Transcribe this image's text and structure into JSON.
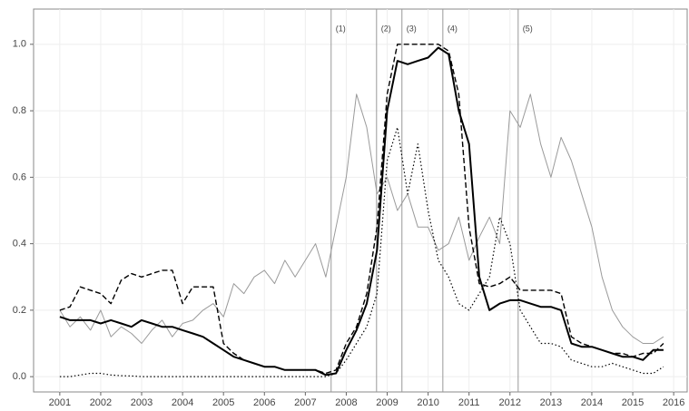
{
  "chart_data": {
    "type": "line",
    "x": [
      2001,
      2001.25,
      2001.5,
      2001.75,
      2002,
      2002.25,
      2002.5,
      2002.75,
      2003,
      2003.25,
      2003.5,
      2003.75,
      2004,
      2004.25,
      2004.5,
      2004.75,
      2005,
      2005.25,
      2005.5,
      2005.75,
      2006,
      2006.25,
      2006.5,
      2006.75,
      2007,
      2007.25,
      2007.5,
      2007.75,
      2008,
      2008.25,
      2008.5,
      2008.75,
      2009,
      2009.25,
      2009.5,
      2009.75,
      2010,
      2010.25,
      2010.5,
      2010.75,
      2011,
      2011.25,
      2011.5,
      2011.75,
      2012,
      2012.25,
      2012.5,
      2012.75,
      2013,
      2013.25,
      2013.5,
      2013.75,
      2014,
      2014.25,
      2014.5,
      2014.75,
      2015,
      2015.25,
      2015.5,
      2015.75
    ],
    "series": [
      {
        "color": "#9a9a9a",
        "style": "solid",
        "width": 1,
        "values": [
          0.2,
          0.15,
          0.18,
          0.14,
          0.2,
          0.12,
          0.15,
          0.13,
          0.1,
          0.14,
          0.17,
          0.12,
          0.16,
          0.17,
          0.2,
          0.22,
          0.18,
          0.28,
          0.25,
          0.3,
          0.32,
          0.28,
          0.35,
          0.3,
          0.35,
          0.4,
          0.3,
          0.45,
          0.6,
          0.85,
          0.75,
          0.55,
          0.6,
          0.5,
          0.55,
          0.45,
          0.45,
          0.38,
          0.4,
          0.48,
          0.35,
          0.42,
          0.48,
          0.4,
          0.8,
          0.75,
          0.85,
          0.7,
          0.6,
          0.72,
          0.65,
          0.55,
          0.45,
          0.3,
          0.2,
          0.15,
          0.12,
          0.1,
          0.1,
          0.12
        ]
      },
      {
        "color": "#000000",
        "style": "dashed",
        "width": 1.4,
        "values": [
          0.2,
          0.21,
          0.27,
          0.26,
          0.25,
          0.22,
          0.29,
          0.31,
          0.3,
          0.31,
          0.32,
          0.32,
          0.22,
          0.27,
          0.27,
          0.27,
          0.1,
          0.07,
          0.05,
          0.04,
          0.03,
          0.03,
          0.02,
          0.02,
          0.02,
          0.02,
          0.01,
          0.02,
          0.1,
          0.15,
          0.25,
          0.45,
          0.85,
          1.0,
          1.0,
          1.0,
          1.0,
          1.0,
          0.98,
          0.85,
          0.45,
          0.28,
          0.27,
          0.28,
          0.3,
          0.26,
          0.26,
          0.26,
          0.26,
          0.25,
          0.12,
          0.1,
          0.09,
          0.08,
          0.07,
          0.07,
          0.06,
          0.07,
          0.07,
          0.1
        ]
      },
      {
        "color": "#000000",
        "style": "dotted",
        "width": 1.2,
        "values": [
          0,
          0,
          0.005,
          0.01,
          0.01,
          0.005,
          0.003,
          0.002,
          0,
          0,
          0,
          0,
          0,
          0,
          0,
          0,
          0,
          0,
          0,
          0,
          0,
          0,
          0,
          0,
          0,
          0,
          0,
          0.01,
          0.05,
          0.1,
          0.15,
          0.25,
          0.65,
          0.75,
          0.55,
          0.7,
          0.5,
          0.35,
          0.3,
          0.22,
          0.2,
          0.25,
          0.3,
          0.48,
          0.4,
          0.2,
          0.15,
          0.1,
          0.1,
          0.09,
          0.05,
          0.04,
          0.03,
          0.03,
          0.04,
          0.03,
          0.02,
          0.01,
          0.01,
          0.03
        ]
      },
      {
        "color": "#000000",
        "style": "solid",
        "width": 2,
        "values": [
          0.18,
          0.17,
          0.17,
          0.17,
          0.16,
          0.17,
          0.16,
          0.15,
          0.17,
          0.16,
          0.15,
          0.15,
          0.14,
          0.13,
          0.12,
          0.1,
          0.08,
          0.06,
          0.05,
          0.04,
          0.03,
          0.03,
          0.02,
          0.02,
          0.02,
          0.02,
          0.005,
          0.01,
          0.08,
          0.14,
          0.22,
          0.38,
          0.8,
          0.95,
          0.94,
          0.95,
          0.96,
          0.99,
          0.97,
          0.8,
          0.7,
          0.3,
          0.2,
          0.22,
          0.23,
          0.23,
          0.22,
          0.21,
          0.21,
          0.2,
          0.1,
          0.09,
          0.09,
          0.08,
          0.07,
          0.06,
          0.06,
          0.05,
          0.08,
          0.08
        ]
      }
    ],
    "vlines": [
      {
        "x": 2007.63,
        "label": "(1)"
      },
      {
        "x": 2008.74,
        "label": "(2)"
      },
      {
        "x": 2009.36,
        "label": "(3)"
      },
      {
        "x": 2010.36,
        "label": "(4)"
      },
      {
        "x": 2012.2,
        "label": "(5)"
      }
    ],
    "xlim": [
      2000.36,
      2016.33
    ],
    "ylim": [
      -0.046,
      1.106
    ],
    "xticks": [
      2001,
      2002,
      2003,
      2004,
      2005,
      2006,
      2007,
      2008,
      2009,
      2010,
      2011,
      2012,
      2013,
      2014,
      2015,
      2016
    ],
    "yticks": [
      {
        "value": 0,
        "label": "0.0"
      },
      0.2,
      0.4,
      0.6,
      0.8,
      {
        "value": 1,
        "label": "1.0"
      }
    ],
    "grid": true
  }
}
